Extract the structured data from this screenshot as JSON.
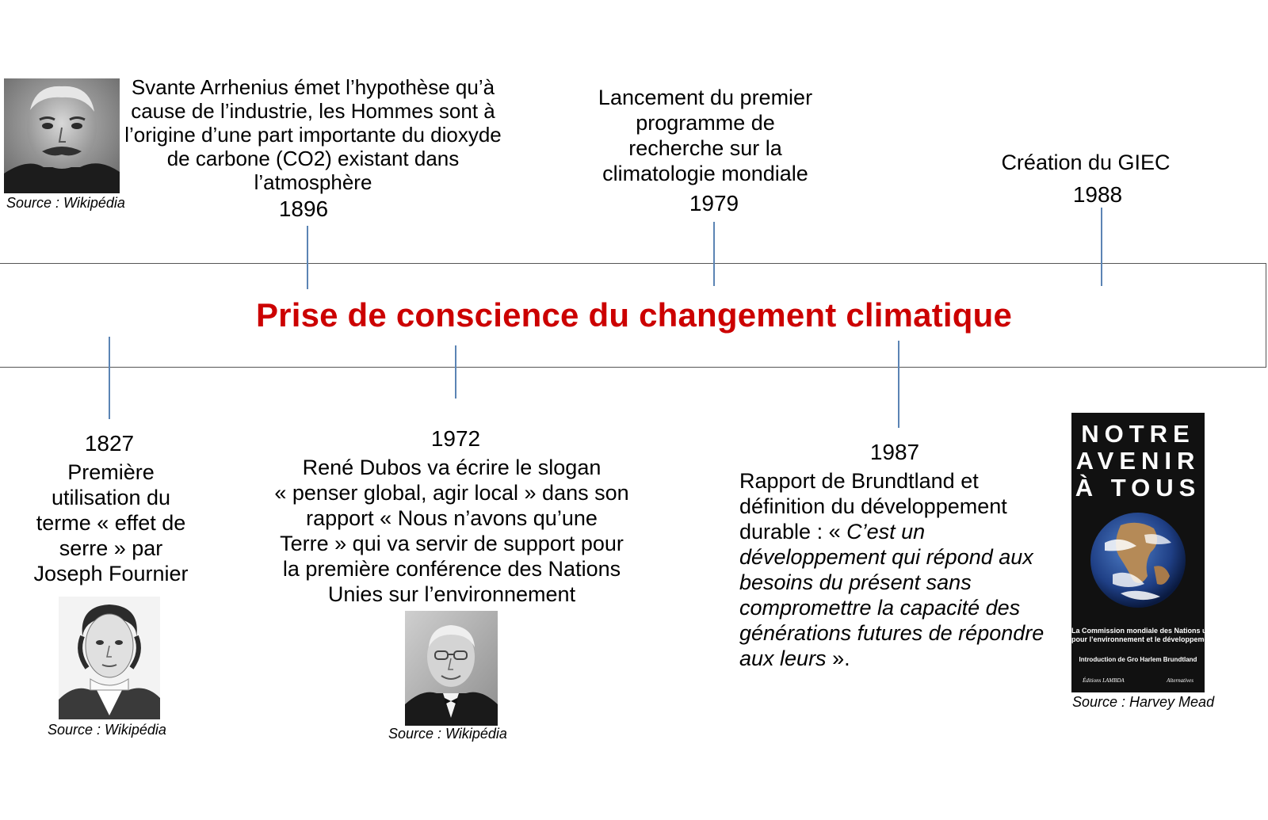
{
  "title": "Prise de conscience du changement climatique",
  "colors": {
    "title": "#cc0000",
    "ticks": "#5b84b4",
    "band_border": "#555555"
  },
  "events": {
    "e1896": {
      "lines": [
        "Svante Arrhenius émet l’hypothèse qu’à",
        "cause de l’industrie, les Hommes sont à",
        "l’origine d’une part importante du dioxyde",
        "de carbone (CO2) existant dans",
        "l’atmosphère"
      ],
      "year": "1896",
      "source": "Source : Wikipédia",
      "photo_icon": "portrait-photo"
    },
    "e1979": {
      "lines": [
        "Lancement du premier",
        "programme de",
        "recherche sur la",
        "climatologie mondiale"
      ],
      "year": "1979"
    },
    "e1988": {
      "text": "Création du GIEC",
      "year": "1988"
    },
    "e1827": {
      "year": "1827",
      "lines": [
        "Première",
        "utilisation du",
        "terme « effet de",
        "serre » par",
        "Joseph Fournier"
      ],
      "source": "Source : Wikipédia",
      "photo_icon": "engraving-portrait"
    },
    "e1972": {
      "year": "1972",
      "lines": [
        "René Dubos va écrire le slogan",
        "« penser global, agir local » dans son",
        "rapport « Nous n’avons qu’une",
        "Terre » qui va servir de support pour",
        "la première conférence des Nations",
        "Unies sur l’environnement"
      ],
      "source": "Source : Wikipédia",
      "photo_icon": "portrait-photo"
    },
    "e1987": {
      "year": "1987",
      "line1": "Rapport de Brundtland et",
      "line2": "définition du développement",
      "line3_normal": "durable : « ",
      "line3_italic": "C’est un",
      "italic_lines": [
        "développement qui répond aux",
        "besoins du présent sans",
        "compromettre la capacité des",
        "générations futures de répondre"
      ],
      "last_italic": "aux leurs",
      "last_normal": " ».",
      "source": "Source : Harvey Mead",
      "book": {
        "title_lines": [
          "NOTRE",
          "AVENIR",
          "À TOUS"
        ],
        "subtitle_lines": [
          "La Commission mondiale des Nations unies",
          "pour l’environnement et le développement"
        ],
        "intro": "Introduction de Gro Harlem Brundtland",
        "publisher": "Éditions LAMBDA",
        "collection": "Alternatives",
        "image_icon": "earth-globe"
      }
    }
  }
}
